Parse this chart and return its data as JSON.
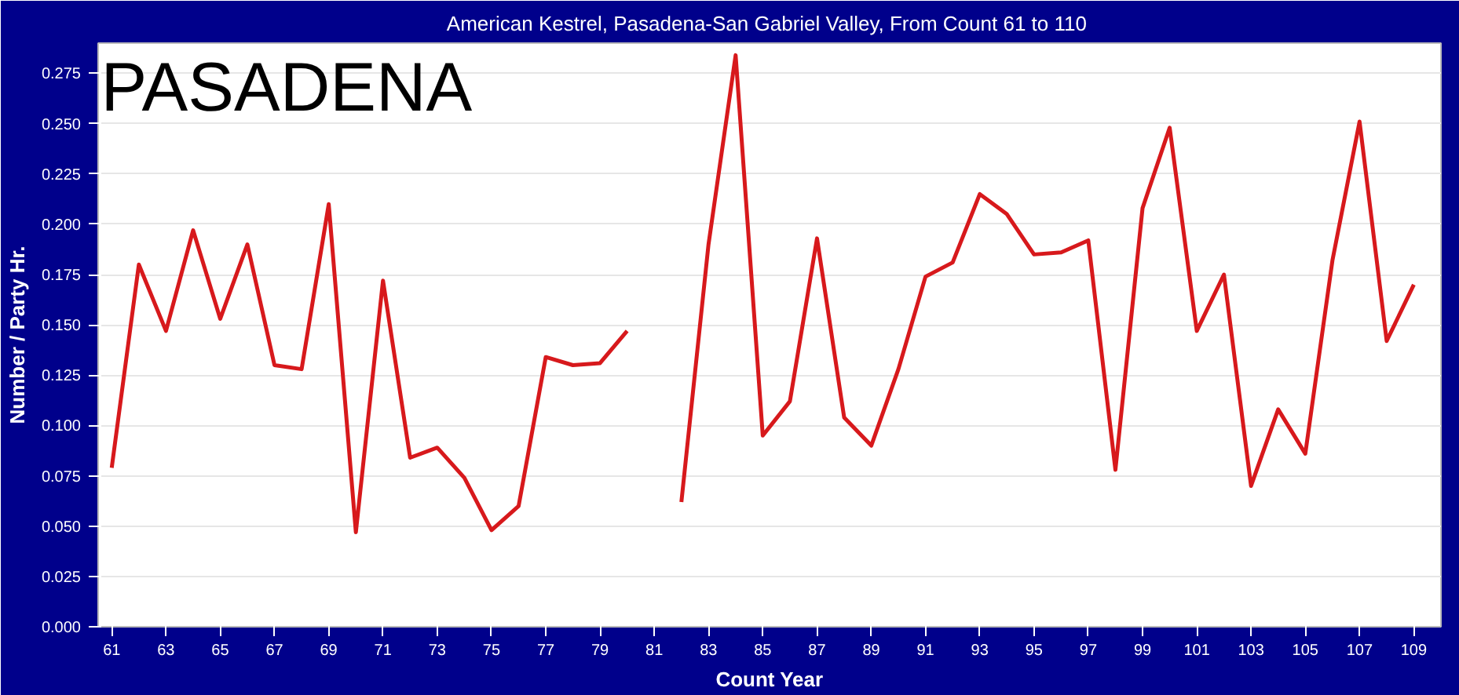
{
  "chart_data": {
    "type": "line",
    "title": "American Kestrel, Pasadena-San Gabriel Valley,  From Count 61 to 110",
    "xlabel": "Count Year",
    "ylabel": "Number / Party Hr.",
    "annotations": [
      "PASADENA"
    ],
    "x": [
      61,
      62,
      63,
      64,
      65,
      66,
      67,
      68,
      69,
      70,
      71,
      72,
      73,
      74,
      75,
      76,
      77,
      78,
      79,
      80,
      81,
      82,
      83,
      84,
      85,
      86,
      87,
      88,
      89,
      90,
      91,
      92,
      93,
      94,
      95,
      96,
      97,
      98,
      99,
      100,
      101,
      102,
      103,
      104,
      105,
      106,
      107,
      108,
      109
    ],
    "series": [
      {
        "color": "#d7191c",
        "values": [
          0.079,
          0.18,
          0.147,
          0.197,
          0.153,
          0.19,
          0.13,
          0.128,
          0.21,
          0.047,
          0.172,
          0.084,
          0.089,
          0.074,
          0.048,
          0.06,
          0.134,
          0.13,
          0.131,
          0.147,
          null,
          0.062,
          0.19,
          0.284,
          0.095,
          0.112,
          0.193,
          0.104,
          0.09,
          0.128,
          0.174,
          0.181,
          0.215,
          0.205,
          0.185,
          0.186,
          0.192,
          0.078,
          0.208,
          0.248,
          0.147,
          0.175,
          0.07,
          0.108,
          0.086,
          0.182,
          0.251,
          0.142,
          0.17
        ]
      }
    ],
    "xlim": [
      60.5,
      110
    ],
    "ylim": [
      0,
      0.29
    ],
    "xticks": [
      61,
      63,
      65,
      67,
      69,
      71,
      73,
      75,
      77,
      79,
      81,
      83,
      85,
      87,
      89,
      91,
      93,
      95,
      97,
      99,
      101,
      103,
      105,
      107,
      109
    ],
    "yticks": [
      {
        "value": 0,
        "label": "0.000"
      },
      {
        "value": 0.025,
        "label": "0.025"
      },
      {
        "value": 0.05,
        "label": "0.050"
      },
      {
        "value": 0.075,
        "label": "0.075"
      },
      {
        "value": 0.1,
        "label": "0.100"
      },
      {
        "value": 0.125,
        "label": "0.125"
      },
      {
        "value": 0.15,
        "label": "0.150"
      },
      {
        "value": 0.175,
        "label": "0.175"
      },
      {
        "value": 0.2,
        "label": "0.200"
      },
      {
        "value": 0.225,
        "label": "0.225"
      },
      {
        "value": 0.25,
        "label": "0.250"
      },
      {
        "value": 0.275,
        "label": "0.275"
      }
    ],
    "grid": "y",
    "line_style": "solid"
  }
}
